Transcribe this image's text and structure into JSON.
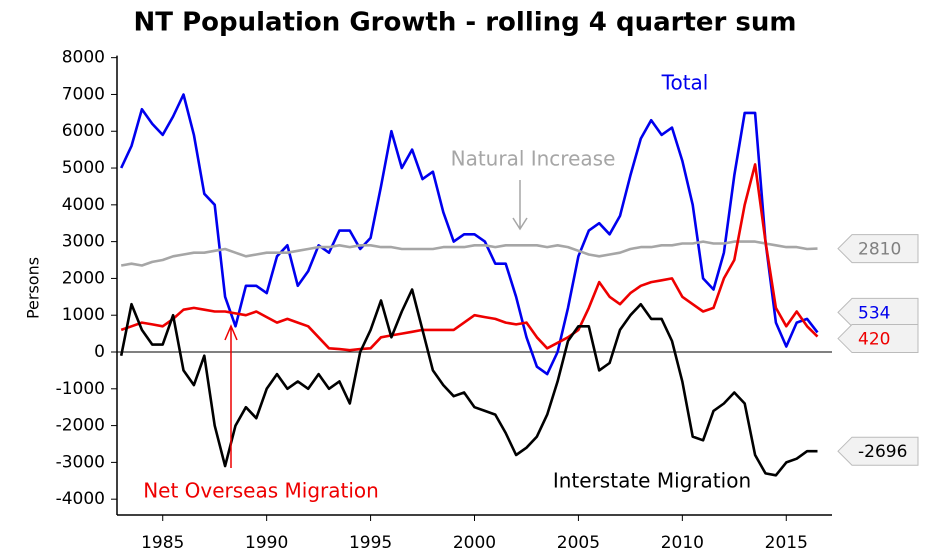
{
  "chart_data": {
    "type": "line",
    "title": "NT Population Growth - rolling 4 quarter sum",
    "ylabel": "Persons",
    "x": [
      1983.0,
      1983.5,
      1984.0,
      1984.5,
      1985.0,
      1985.5,
      1986.0,
      1986.5,
      1987.0,
      1987.5,
      1988.0,
      1988.5,
      1989.0,
      1989.5,
      1990.0,
      1990.5,
      1991.0,
      1991.5,
      1992.0,
      1992.5,
      1993.0,
      1993.5,
      1994.0,
      1994.5,
      1995.0,
      1995.5,
      1996.0,
      1996.5,
      1997.0,
      1997.5,
      1998.0,
      1998.5,
      1999.0,
      1999.5,
      2000.0,
      2000.5,
      2001.0,
      2001.5,
      2002.0,
      2002.5,
      2003.0,
      2003.5,
      2004.0,
      2004.5,
      2005.0,
      2005.5,
      2006.0,
      2006.5,
      2007.0,
      2007.5,
      2008.0,
      2008.5,
      2009.0,
      2009.5,
      2010.0,
      2010.5,
      2011.0,
      2011.5,
      2012.0,
      2012.5,
      2013.0,
      2013.5,
      2014.0,
      2014.5,
      2015.0,
      2015.5,
      2016.0,
      2016.5
    ],
    "series": [
      {
        "name": "Total",
        "color": "#0000ee",
        "values": [
          5000,
          5600,
          6600,
          6200,
          5900,
          6400,
          7000,
          5900,
          4300,
          4000,
          1500,
          700,
          1800,
          1800,
          1600,
          2600,
          2900,
          1800,
          2200,
          2900,
          2700,
          3300,
          3300,
          2800,
          3100,
          4500,
          6000,
          5000,
          5500,
          4700,
          4900,
          3800,
          3000,
          3200,
          3200,
          3000,
          2400,
          2400,
          1500,
          400,
          -400,
          -600,
          0,
          1200,
          2600,
          3300,
          3500,
          3200,
          3700,
          4800,
          5800,
          6300,
          5900,
          6100,
          5200,
          4000,
          2000,
          1700,
          2700,
          4800,
          6500,
          6500,
          3000,
          800,
          150,
          800,
          900,
          534
        ]
      },
      {
        "name": "Natural Increase",
        "color": "#a6a6a6",
        "values": [
          2350,
          2400,
          2350,
          2450,
          2500,
          2600,
          2650,
          2700,
          2700,
          2750,
          2800,
          2700,
          2600,
          2650,
          2700,
          2700,
          2700,
          2750,
          2800,
          2850,
          2850,
          2900,
          2850,
          2900,
          2900,
          2850,
          2850,
          2800,
          2800,
          2800,
          2800,
          2850,
          2850,
          2850,
          2900,
          2900,
          2850,
          2900,
          2900,
          2900,
          2900,
          2850,
          2900,
          2850,
          2750,
          2650,
          2600,
          2650,
          2700,
          2800,
          2850,
          2850,
          2900,
          2900,
          2950,
          2950,
          3000,
          2950,
          2950,
          3000,
          3000,
          3000,
          2950,
          2900,
          2850,
          2850,
          2800,
          2810
        ]
      },
      {
        "name": "Net Overseas Migration",
        "color": "#ee0000",
        "values": [
          600,
          700,
          800,
          750,
          700,
          900,
          1150,
          1200,
          1150,
          1100,
          1100,
          1050,
          1000,
          1100,
          950,
          800,
          900,
          800,
          700,
          400,
          100,
          80,
          50,
          80,
          100,
          400,
          450,
          500,
          550,
          600,
          600,
          600,
          600,
          800,
          1000,
          950,
          900,
          800,
          750,
          800,
          400,
          100,
          250,
          400,
          600,
          1200,
          1900,
          1500,
          1300,
          1600,
          1800,
          1900,
          1950,
          2000,
          1500,
          1300,
          1100,
          1200,
          2000,
          2500,
          4000,
          5100,
          3000,
          1200,
          700,
          1100,
          700,
          420
        ]
      },
      {
        "name": "Interstate Migration",
        "color": "#000000",
        "values": [
          -100,
          1300,
          600,
          200,
          200,
          1000,
          -500,
          -900,
          -100,
          -2000,
          -3100,
          -2000,
          -1500,
          -1800,
          -1000,
          -600,
          -1000,
          -800,
          -1000,
          -600,
          -1000,
          -800,
          -1400,
          0,
          600,
          1400,
          400,
          1100,
          1700,
          600,
          -500,
          -900,
          -1200,
          -1100,
          -1500,
          -1600,
          -1700,
          -2200,
          -2800,
          -2600,
          -2300,
          -1700,
          -800,
          300,
          700,
          700,
          -500,
          -300,
          600,
          1000,
          1300,
          900,
          900,
          300,
          -800,
          -2300,
          -2400,
          -1600,
          -1400,
          -1100,
          -1400,
          -2800,
          -3300,
          -3350,
          -3000,
          -2900,
          -2696,
          -2696
        ]
      }
    ],
    "xlim": [
      1982.8,
      2017.2
    ],
    "ylim": [
      -4430,
      8480
    ],
    "xticks": [
      1985,
      1990,
      1995,
      2000,
      2005,
      2010,
      2015
    ],
    "yticks": [
      8000,
      7000,
      6000,
      5000,
      4000,
      3000,
      2000,
      1000,
      0,
      -1000,
      -2000,
      -3000,
      -4000
    ],
    "zero_line": true,
    "end_labels": true
  }
}
